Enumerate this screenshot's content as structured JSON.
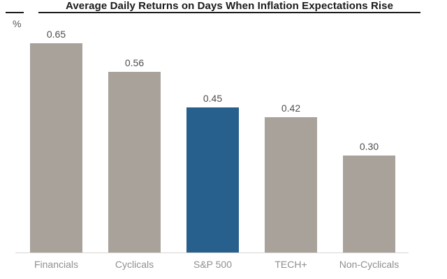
{
  "header": {
    "y_axis_unit": "%"
  },
  "colors": {
    "bar_default": "#a9a29b",
    "bar_highlight": "#275f8d",
    "title_text": "#1a1a1a",
    "value_label": "#4d4d4d",
    "category_label": "#8f8f8f",
    "axis_line": "#d8d6d3"
  },
  "chart_data": {
    "type": "bar",
    "title": "Average Daily Returns on Days When Inflation Expectations Rise",
    "categories": [
      "Financials",
      "Cyclicals",
      "S&P 500",
      "TECH+",
      "Non-Cyclicals"
    ],
    "values": [
      0.65,
      0.56,
      0.45,
      0.42,
      0.3
    ],
    "value_labels": [
      "0.65",
      "0.56",
      "0.45",
      "0.42",
      "0.30"
    ],
    "highlight_index": 2,
    "highlighted_category": "S&P 500",
    "xlabel": "",
    "ylabel": "%",
    "ylim": [
      0,
      0.7
    ],
    "grid": false,
    "legend": "none",
    "value_labels_position": "above-bars",
    "baseline_axis": "x-axis only"
  }
}
